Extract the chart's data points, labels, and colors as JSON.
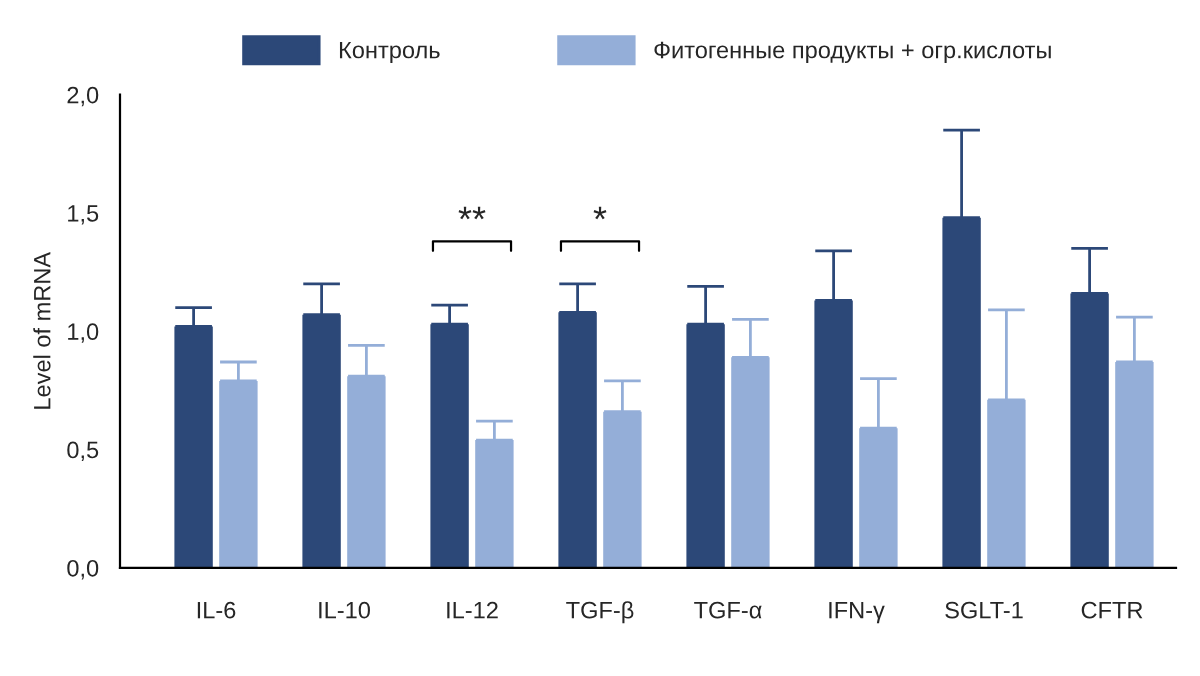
{
  "chart_data": {
    "type": "bar",
    "ylabel": "Level of mRNA",
    "categories": [
      "IL-6",
      "IL-10",
      "IL-12",
      "TGF-β",
      "TGF-α",
      "IFN-γ",
      "SGLT-1",
      "CFTR"
    ],
    "series": [
      {
        "name": "Контроль",
        "color": "#2c4878",
        "values": [
          1.02,
          1.07,
          1.03,
          1.08,
          1.03,
          1.13,
          1.48,
          1.16
        ],
        "errors": [
          [
            1.02,
            1.1
          ],
          [
            1.07,
            1.2
          ],
          [
            1.03,
            1.11
          ],
          [
            1.08,
            1.2
          ],
          [
            1.03,
            1.19
          ],
          [
            1.13,
            1.34
          ],
          [
            1.48,
            1.85
          ],
          [
            1.16,
            1.35
          ]
        ]
      },
      {
        "name": "Фитогенные продукты + огр.кислоты",
        "color": "#94aed8",
        "values": [
          0.79,
          0.81,
          0.54,
          0.66,
          0.89,
          0.59,
          0.71,
          0.87
        ],
        "errors": [
          [
            0.79,
            0.87
          ],
          [
            0.81,
            0.94
          ],
          [
            0.54,
            0.62
          ],
          [
            0.66,
            0.79
          ],
          [
            0.89,
            1.05
          ],
          [
            0.59,
            0.8
          ],
          [
            0.71,
            1.09
          ],
          [
            0.87,
            1.06
          ]
        ]
      }
    ],
    "ylim": [
      0,
      2.0
    ],
    "yticks": [
      {
        "value": 0,
        "label": "0,0"
      },
      {
        "value": 0.5,
        "label": "0,5"
      },
      {
        "value": 1.0,
        "label": "1,0"
      },
      {
        "value": 1.5,
        "label": "1,5"
      },
      {
        "value": 2.0,
        "label": "2,0"
      }
    ],
    "annotations": [
      "**",
      "*"
    ],
    "grid": false,
    "legend": "top"
  }
}
